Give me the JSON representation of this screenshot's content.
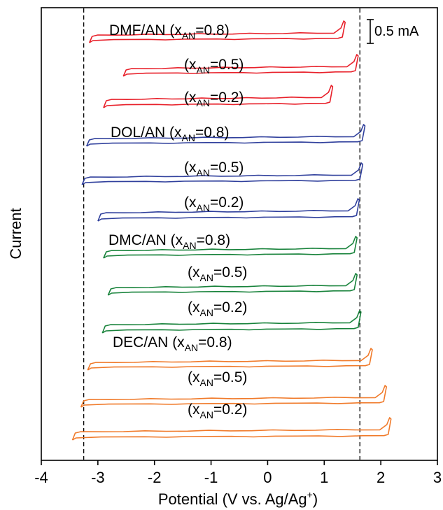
{
  "chart_data": {
    "type": "line",
    "xlabel": "Potential (V vs. Ag/Ag",
    "xlabel_sup": "+",
    "xlabel_end": ")",
    "ylabel": "Current",
    "xlim": [
      -4,
      3
    ],
    "xticks": [
      "-4",
      "-3",
      "-2",
      "-1",
      "0",
      "1",
      "2",
      "3"
    ],
    "xtick_values": [
      -4,
      -3,
      -2,
      -1,
      0,
      1,
      2,
      3
    ],
    "scale_bar_label": "0.5 mA",
    "vlines": [
      -3.25,
      1.63
    ],
    "label_sub": "AN",
    "colors": {
      "DMF/AN": "#e8202a",
      "DOL/AN": "#2f3f9c",
      "DMC/AN": "#17823a",
      "DEC/AN": "#f07a2a"
    },
    "series": [
      {
        "name": "DMF/AN (xAN=0.8)",
        "label_main": "DMF/AN",
        "label_x": "(x",
        "label_val": "=0.8)",
        "group": "DMF/AN",
        "x_min": -3.15,
        "x_max": 1.37
      },
      {
        "name": "(xAN=0.5)",
        "label_main": "",
        "label_x": "(x",
        "label_val": "=0.5)",
        "group": "DMF/AN",
        "x_min": -2.55,
        "x_max": 1.6
      },
      {
        "name": "(xAN=0.2)",
        "label_main": "",
        "label_x": "(x",
        "label_val": "=0.2)",
        "group": "DMF/AN",
        "x_min": -2.9,
        "x_max": 1.15
      },
      {
        "name": "DOL/AN (xAN=0.8)",
        "label_main": "DOL/AN",
        "label_x": "(x",
        "label_val": "=0.8)",
        "group": "DOL/AN",
        "x_min": -3.2,
        "x_max": 1.72
      },
      {
        "name": "(xAN=0.5)",
        "label_main": "",
        "label_x": "(x",
        "label_val": "=0.5)",
        "group": "DOL/AN",
        "x_min": -3.28,
        "x_max": 1.68
      },
      {
        "name": "(xAN=0.2)",
        "label_main": "",
        "label_x": "(x",
        "label_val": "=0.2)",
        "group": "DOL/AN",
        "x_min": -3.0,
        "x_max": 1.62
      },
      {
        "name": "DMC/AN (xAN=0.8)",
        "label_main": "DMC/AN",
        "label_x": "(x",
        "label_val": "=0.8)",
        "group": "DMC/AN",
        "x_min": -2.9,
        "x_max": 1.58
      },
      {
        "name": "(xAN=0.5)",
        "label_main": "",
        "label_x": "(x",
        "label_val": "=0.5)",
        "group": "DMC/AN",
        "x_min": -2.82,
        "x_max": 1.58
      },
      {
        "name": "(xAN=0.2)",
        "label_main": "",
        "label_x": "(x",
        "label_val": "=0.2)",
        "group": "DMC/AN",
        "x_min": -2.92,
        "x_max": 1.65
      },
      {
        "name": "DEC/AN (xAN=0.8)",
        "label_main": "DEC/AN",
        "label_x": "(x",
        "label_val": "=0.8)",
        "group": "DEC/AN",
        "x_min": -3.18,
        "x_max": 1.85
      },
      {
        "name": "(xAN=0.5)",
        "label_main": "",
        "label_x": "(x",
        "label_val": "=0.5)",
        "group": "DEC/AN",
        "x_min": -3.3,
        "x_max": 2.1
      },
      {
        "name": "(xAN=0.2)",
        "label_main": "",
        "label_x": "(x",
        "label_val": "=0.2)",
        "group": "DEC/AN",
        "x_min": -3.45,
        "x_max": 2.18
      }
    ]
  }
}
